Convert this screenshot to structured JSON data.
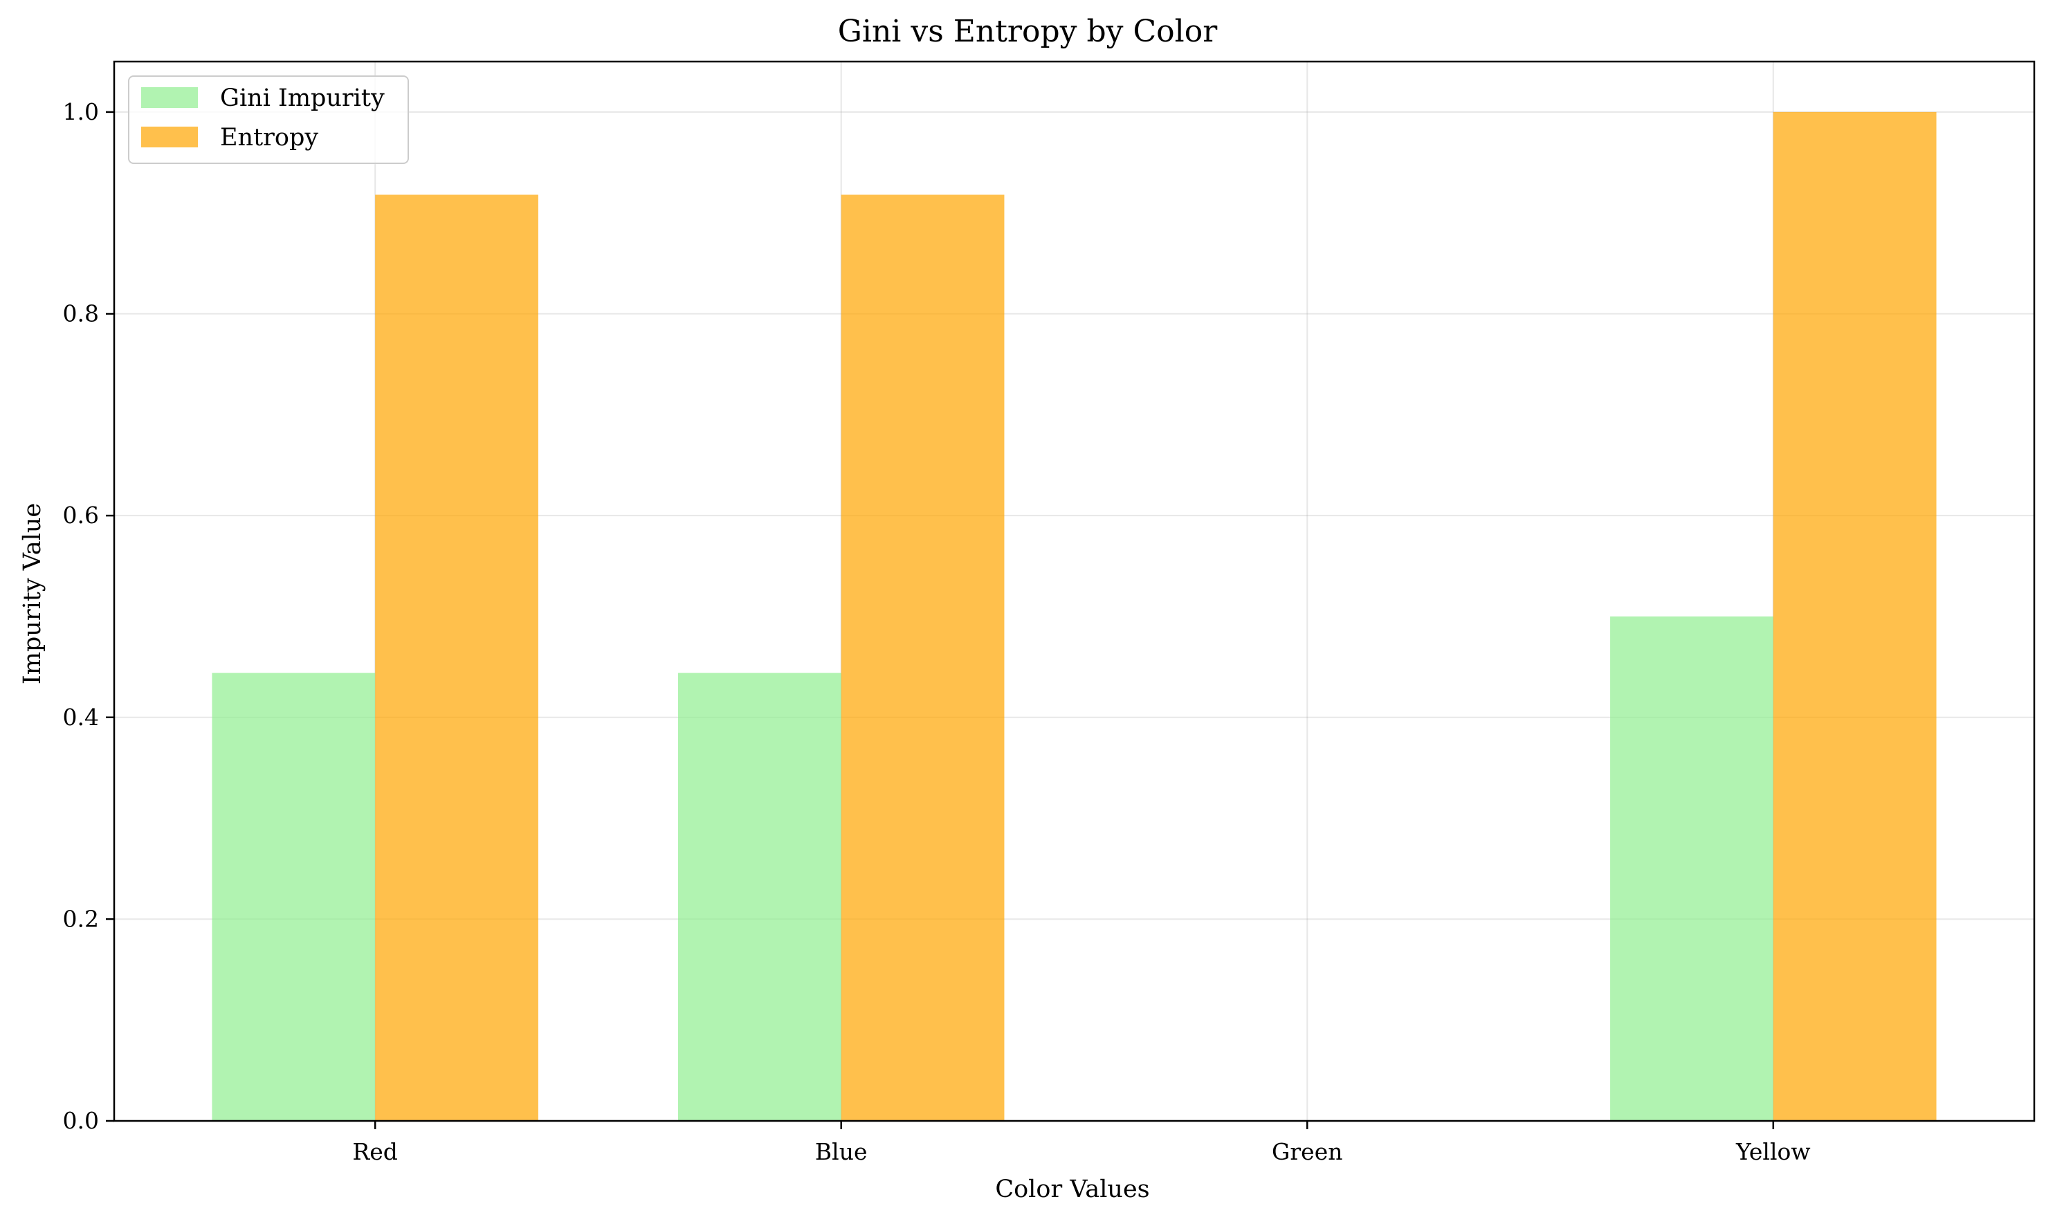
{
  "chart_data": {
    "type": "bar",
    "title": "Gini vs Entropy by Color",
    "xlabel": "Color Values",
    "ylabel": "Impurity Value",
    "categories": [
      "Red",
      "Blue",
      "Green",
      "Yellow"
    ],
    "series": [
      {
        "name": "Gini Impurity",
        "values": [
          0.444,
          0.444,
          0.0,
          0.5
        ],
        "color": "#90ee90"
      },
      {
        "name": "Entropy",
        "values": [
          0.918,
          0.918,
          0.0,
          1.0
        ],
        "color": "#ffa500"
      }
    ],
    "ylim": [
      0,
      1.05
    ],
    "yticks": [
      0.0,
      0.2,
      0.4,
      0.6,
      0.8,
      1.0
    ],
    "ytick_labels": [
      "0.0",
      "0.2",
      "0.4",
      "0.6",
      "0.8",
      "1.0"
    ],
    "bar_opacity": 0.7,
    "grid": true,
    "legend_position": "top-left"
  }
}
